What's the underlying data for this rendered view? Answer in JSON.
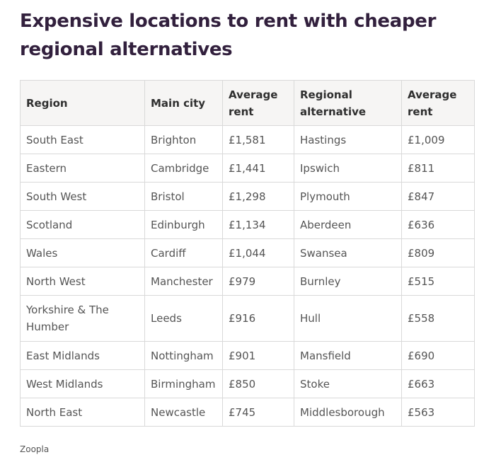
{
  "title": "Expensive locations to rent with cheaper regional alternatives",
  "table": {
    "headers": [
      "Region",
      "Main city",
      "Average rent",
      "Regional alternative",
      "Average rent"
    ],
    "rows": [
      [
        "South East",
        "Brighton",
        "£1,581",
        "Hastings",
        "£1,009"
      ],
      [
        "Eastern",
        "Cambridge",
        "£1,441",
        "Ipswich",
        "£811"
      ],
      [
        "South West",
        "Bristol",
        "£1,298",
        "Plymouth",
        "£847"
      ],
      [
        "Scotland",
        "Edinburgh",
        "£1,134",
        "Aberdeen",
        "£636"
      ],
      [
        "Wales",
        "Cardiff",
        "£1,044",
        "Swansea",
        "£809"
      ],
      [
        "North West",
        "Manchester",
        "£979",
        "Burnley",
        "£515"
      ],
      [
        "Yorkshire & The Humber",
        "Leeds",
        "£916",
        "Hull",
        "£558"
      ],
      [
        "East Midlands",
        "Nottingham",
        "£901",
        "Mansfield",
        "£690"
      ],
      [
        "West Midlands",
        "Birmingham",
        "£850",
        "Stoke",
        "£663"
      ],
      [
        "North East",
        "Newcastle",
        "£745",
        "Middlesborough",
        "£563"
      ]
    ]
  },
  "source": "Zoopla"
}
